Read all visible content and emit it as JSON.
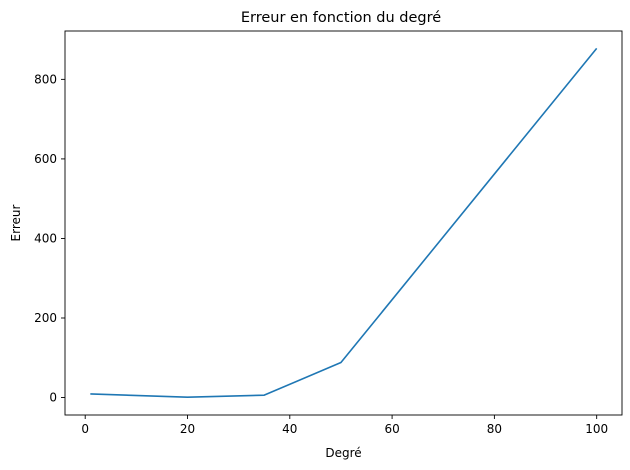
{
  "chart_data": {
    "type": "line",
    "title": "Erreur en fonction du degré",
    "xlabel": "Degré",
    "ylabel": "Erreur",
    "xlim": [
      -3.95,
      104.95
    ],
    "ylim": [
      -43.9,
      921.6
    ],
    "xticks": [
      0,
      20,
      40,
      60,
      80,
      100
    ],
    "yticks": [
      0,
      200,
      400,
      600,
      800
    ],
    "grid": false,
    "series": [
      {
        "color": "#1f77b4",
        "x": [
          1,
          20,
          35,
          50,
          100
        ],
        "y": [
          9,
          1,
          6,
          88,
          878
        ]
      }
    ]
  }
}
